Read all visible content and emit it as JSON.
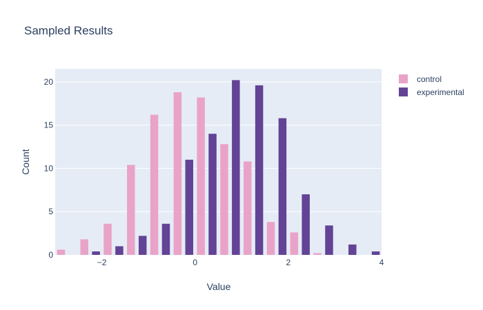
{
  "chart_data": {
    "type": "bar",
    "title": "Sampled Results",
    "xlabel": "Value",
    "ylabel": "Count",
    "xlim": [
      -3,
      4
    ],
    "ylim": [
      0,
      21.5
    ],
    "bin_width": 0.5,
    "x_ticks": [
      -2,
      0,
      2,
      4
    ],
    "x_tick_labels": [
      "−2",
      "0",
      "2",
      "4"
    ],
    "y_ticks": [
      0,
      5,
      10,
      15,
      20
    ],
    "y_tick_labels": [
      "0",
      "5",
      "10",
      "15",
      "20"
    ],
    "grid": true,
    "legend_position": "top-right",
    "plot_background": "#e5ecf6",
    "series": [
      {
        "name": "control",
        "color": "#eaa3c8",
        "bins": [
          -3,
          -2.5,
          -2,
          -1.5,
          -1,
          -0.5,
          0,
          0.5,
          1,
          1.5,
          2,
          2.5
        ],
        "values": [
          0.6,
          1.8,
          3.6,
          10.4,
          16.2,
          18.8,
          18.2,
          12.8,
          10.8,
          3.8,
          2.6,
          0.2
        ]
      },
      {
        "name": "experimental",
        "color": "#634395",
        "bins": [
          -2.5,
          -2,
          -1.5,
          -1,
          -0.5,
          0,
          0.5,
          1,
          1.5,
          2,
          2.5,
          3,
          3.5
        ],
        "values": [
          0.4,
          1.0,
          2.2,
          3.6,
          11.0,
          14.0,
          20.2,
          19.6,
          15.8,
          7.0,
          3.4,
          1.2,
          0.4
        ]
      }
    ]
  }
}
